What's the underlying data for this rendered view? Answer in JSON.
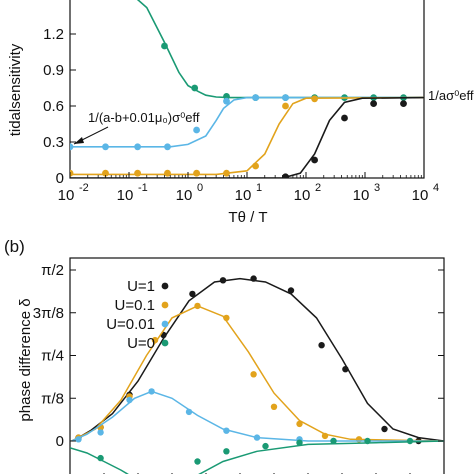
{
  "colors": {
    "black": "#1a1a1a",
    "orange": "#e2a31c",
    "blue": "#5bb6e6",
    "green": "#1a9a74"
  },
  "chart_data": [
    {
      "panel_label": "",
      "type": "line",
      "xscale": "log",
      "xlim": [
        0.01,
        10000
      ],
      "ylim": [
        0,
        1.5
      ],
      "x_ticks": [
        0.01,
        0.1,
        1,
        10,
        100,
        1000,
        10000
      ],
      "x_tick_labels": [
        [
          "10",
          "-2"
        ],
        [
          "10",
          "-1"
        ],
        [
          "10",
          "0"
        ],
        [
          "10",
          "1"
        ],
        [
          "10",
          "2"
        ],
        [
          "10",
          "3"
        ],
        [
          "10",
          "4"
        ]
      ],
      "y_ticks": [
        0,
        0.3,
        0.6,
        0.9,
        1.2
      ],
      "y_tick_labels": [
        "0",
        "0.3",
        "0.6",
        "0.9",
        "1.2"
      ],
      "xlabel": "Tθ / T",
      "ylabel": "tidalsensitivity",
      "annotations": {
        "left": "1/(a-b+0.01μ₀)σ⁰eff",
        "right": "1/aσ⁰eff"
      },
      "series": [
        {
          "color_key": "green",
          "line": [
            [
              0.1,
              1.55
            ],
            [
              0.2,
              1.42
            ],
            [
              0.4,
              1.13
            ],
            [
              0.7,
              0.88
            ],
            [
              1.0,
              0.77
            ],
            [
              1.5,
              0.72
            ],
            [
              2,
              0.69
            ],
            [
              3,
              0.675
            ],
            [
              5,
              0.67
            ],
            [
              10,
              0.67
            ],
            [
              10000,
              0.67
            ]
          ],
          "points": [
            [
              0.4,
              1.1
            ],
            [
              1.3,
              0.75
            ],
            [
              4.5,
              0.68
            ],
            [
              14,
              0.67
            ],
            [
              45,
              0.67
            ],
            [
              140,
              0.67
            ],
            [
              450,
              0.67
            ],
            [
              1400,
              0.67
            ],
            [
              4500,
              0.67
            ]
          ]
        },
        {
          "color_key": "blue",
          "line": [
            [
              0.01,
              0.26
            ],
            [
              0.5,
              0.26
            ],
            [
              1.0,
              0.28
            ],
            [
              2,
              0.35
            ],
            [
              3,
              0.48
            ],
            [
              4,
              0.58
            ],
            [
              6,
              0.65
            ],
            [
              10,
              0.67
            ],
            [
              10000,
              0.67
            ]
          ],
          "points": [
            [
              0.01,
              0.26
            ],
            [
              0.04,
              0.26
            ],
            [
              0.14,
              0.26
            ],
            [
              0.45,
              0.26
            ],
            [
              1.4,
              0.4
            ],
            [
              4.5,
              0.64
            ],
            [
              14,
              0.67
            ],
            [
              45,
              0.67
            ]
          ]
        },
        {
          "color_key": "orange",
          "line": [
            [
              0.01,
              0.03
            ],
            [
              3,
              0.03
            ],
            [
              10,
              0.06
            ],
            [
              20,
              0.2
            ],
            [
              35,
              0.45
            ],
            [
              60,
              0.62
            ],
            [
              100,
              0.665
            ],
            [
              10000,
              0.67
            ]
          ],
          "points": [
            [
              0.01,
              0.04
            ],
            [
              0.04,
              0.04
            ],
            [
              0.14,
              0.04
            ],
            [
              0.45,
              0.04
            ],
            [
              1.4,
              0.04
            ],
            [
              4.5,
              0.04
            ],
            [
              14,
              0.1
            ],
            [
              45,
              0.6
            ],
            [
              140,
              0.66
            ]
          ]
        },
        {
          "color_key": "black",
          "line": [
            [
              0.01,
              0.0
            ],
            [
              40,
              0.0
            ],
            [
              80,
              0.04
            ],
            [
              140,
              0.2
            ],
            [
              250,
              0.48
            ],
            [
              450,
              0.63
            ],
            [
              900,
              0.665
            ],
            [
              10000,
              0.67
            ]
          ],
          "points": [
            [
              45,
              0.01
            ],
            [
              140,
              0.15
            ],
            [
              450,
              0.5
            ],
            [
              1400,
              0.62
            ],
            [
              4500,
              0.62
            ]
          ]
        }
      ]
    },
    {
      "panel_label": "(b)",
      "type": "line",
      "ylim": [
        -0.16,
        1.0
      ],
      "y_ticks": [
        0,
        0.25,
        0.5,
        0.75,
        1.0
      ],
      "y_tick_labels": [
        "0",
        "π/8",
        "π/4",
        "3π/8",
        "π/2"
      ],
      "ylabel": "phase difference δ",
      "legend_position": "top-left",
      "series": [
        {
          "name": "U=1",
          "color_key": "black",
          "line": [
            [
              0.01,
              0.0
            ],
            [
              0.05,
              0.02
            ],
            [
              0.12,
              0.06
            ],
            [
              0.25,
              0.16
            ],
            [
              0.4,
              0.35
            ],
            [
              0.55,
              0.6
            ],
            [
              0.7,
              0.82
            ],
            [
              0.85,
              0.93
            ],
            [
              1.0,
              0.95
            ],
            [
              1.15,
              0.93
            ],
            [
              1.3,
              0.86
            ],
            [
              1.45,
              0.72
            ],
            [
              1.6,
              0.48
            ],
            [
              1.75,
              0.22
            ],
            [
              1.9,
              0.07
            ],
            [
              2.05,
              0.02
            ],
            [
              2.2,
              0.0
            ]
          ],
          "points": [
            [
              0.05,
              0.02
            ],
            [
              0.18,
              0.08
            ],
            [
              0.35,
              0.27
            ],
            [
              0.55,
              0.62
            ],
            [
              0.72,
              0.86
            ],
            [
              0.9,
              0.94
            ],
            [
              1.08,
              0.95
            ],
            [
              1.3,
              0.88
            ],
            [
              1.48,
              0.56
            ],
            [
              1.62,
              0.42
            ],
            [
              1.85,
              0.07
            ],
            [
              2.05,
              0.0
            ]
          ]
        },
        {
          "name": "U=0.1",
          "color_key": "orange",
          "line": [
            [
              0.01,
              0.0
            ],
            [
              0.05,
              0.02
            ],
            [
              0.15,
              0.07
            ],
            [
              0.3,
              0.24
            ],
            [
              0.45,
              0.5
            ],
            [
              0.6,
              0.72
            ],
            [
              0.75,
              0.79
            ],
            [
              0.9,
              0.73
            ],
            [
              1.05,
              0.52
            ],
            [
              1.2,
              0.28
            ],
            [
              1.35,
              0.12
            ],
            [
              1.5,
              0.04
            ],
            [
              1.65,
              0.01
            ],
            [
              2.2,
              0.0
            ]
          ],
          "points": [
            [
              0.05,
              0.02
            ],
            [
              0.18,
              0.08
            ],
            [
              0.35,
              0.26
            ],
            [
              0.5,
              0.59
            ],
            [
              0.75,
              0.79
            ],
            [
              0.92,
              0.72
            ],
            [
              1.08,
              0.39
            ],
            [
              1.2,
              0.2
            ],
            [
              1.35,
              0.1
            ],
            [
              1.5,
              0.03
            ],
            [
              1.7,
              0.01
            ]
          ]
        },
        {
          "name": "U=0.01",
          "color_key": "blue",
          "line": [
            [
              0.01,
              0.0
            ],
            [
              0.1,
              0.04
            ],
            [
              0.25,
              0.14
            ],
            [
              0.38,
              0.25
            ],
            [
              0.48,
              0.29
            ],
            [
              0.6,
              0.25
            ],
            [
              0.75,
              0.15
            ],
            [
              0.9,
              0.07
            ],
            [
              1.1,
              0.02
            ],
            [
              1.4,
              0.0
            ],
            [
              2.2,
              0.0
            ]
          ],
          "points": [
            [
              0.05,
              0.01
            ],
            [
              0.18,
              0.05
            ],
            [
              0.35,
              0.24
            ],
            [
              0.48,
              0.29
            ],
            [
              0.7,
              0.17
            ],
            [
              0.92,
              0.06
            ],
            [
              1.1,
              0.02
            ],
            [
              1.35,
              0.01
            ],
            [
              1.55,
              0.0
            ]
          ]
        },
        {
          "name": "U=0",
          "color_key": "green",
          "line": [
            [
              0.0,
              -0.04
            ],
            [
              0.1,
              -0.07
            ],
            [
              0.2,
              -0.12
            ],
            [
              0.3,
              -0.17
            ],
            [
              0.35,
              -0.2
            ]
          ],
          "line2": [
            [
              0.75,
              -0.2
            ],
            [
              0.9,
              -0.12
            ],
            [
              1.1,
              -0.06
            ],
            [
              1.4,
              -0.02
            ],
            [
              1.8,
              -0.01
            ],
            [
              2.2,
              0.0
            ]
          ],
          "points": [
            [
              0.18,
              -0.1
            ],
            [
              0.75,
              -0.12
            ],
            [
              0.92,
              -0.06
            ],
            [
              1.15,
              -0.03
            ],
            [
              1.35,
              -0.01
            ],
            [
              1.55,
              0.0
            ],
            [
              1.75,
              0.0
            ],
            [
              2.0,
              0.0
            ]
          ]
        }
      ],
      "top_legend_markers": [
        "black",
        "green"
      ]
    }
  ]
}
